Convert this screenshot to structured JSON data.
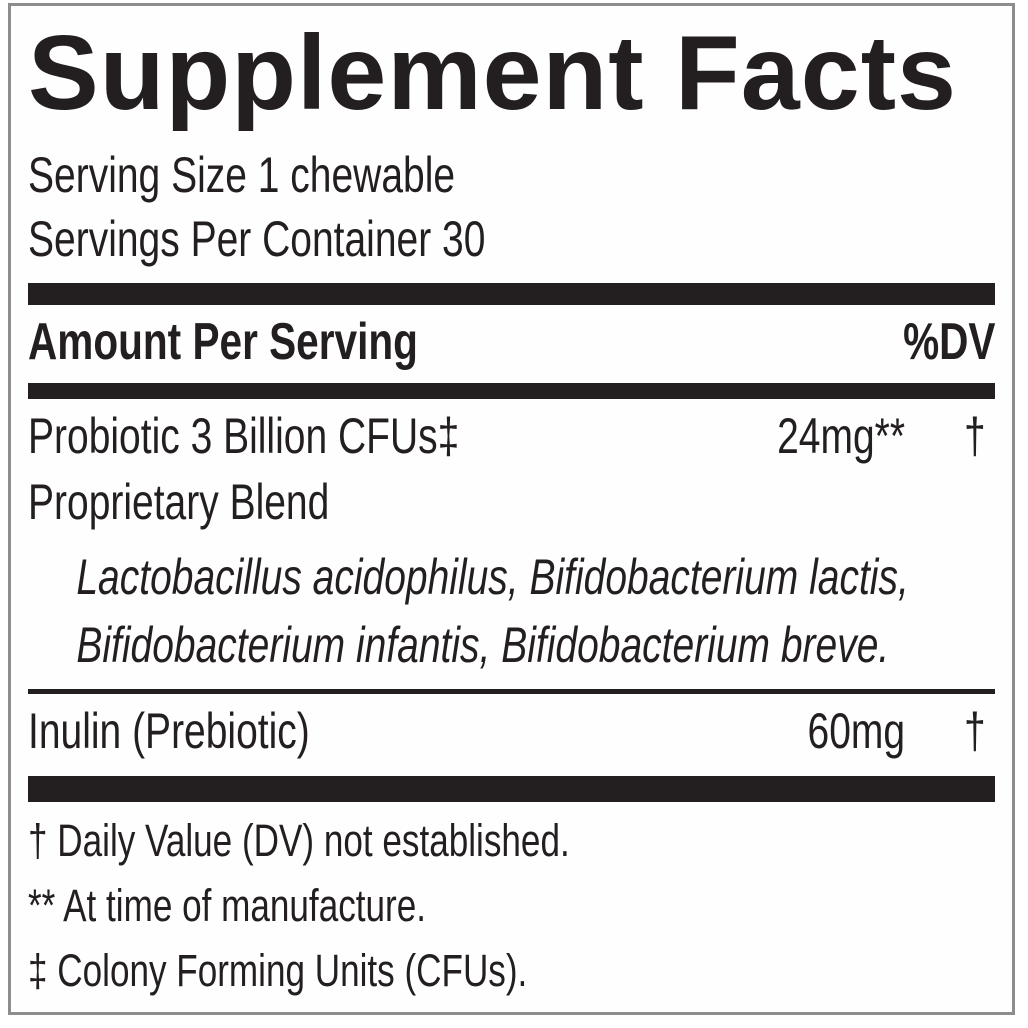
{
  "label": {
    "title": "Supplement Facts",
    "serving_size": "Serving Size 1 chewable",
    "servings_per_container": "Servings Per Container 30",
    "header": {
      "amount_per_serving": "Amount Per Serving",
      "dv": "%DV"
    },
    "rows": [
      {
        "name": "Probiotic 3 Billion CFUs‡",
        "amount": "24mg**",
        "dv": "†"
      },
      {
        "name": "Proprietary Blend",
        "amount": "",
        "dv": ""
      },
      {
        "name": "Inulin (Prebiotic)",
        "amount": "60mg",
        "dv": "†"
      }
    ],
    "blend_lines": [
      "Lactobacillus acidophilus, Bifidobacterium lactis,",
      "Bifidobacterium infantis, Bifidobacterium breve."
    ],
    "footnotes": [
      "† Daily Value (DV) not established.",
      "** At time of manufacture.",
      "‡ Colony Forming Units (CFUs)."
    ],
    "colors": {
      "text": "#231f20",
      "bar": "#231f20",
      "border": "#8d8d8d",
      "background": "#fefefe"
    }
  }
}
